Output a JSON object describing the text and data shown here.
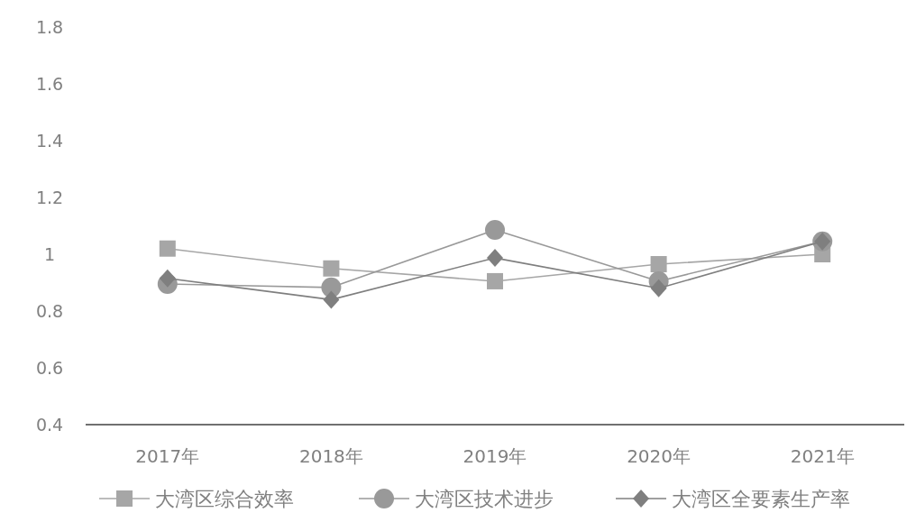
{
  "chart_data": {
    "type": "line",
    "categories": [
      "2017年",
      "2018年",
      "2019年",
      "2020年",
      "2021年"
    ],
    "series": [
      {
        "name": "大湾区综合效率",
        "color": "#a6a6a6",
        "marker": "square",
        "values": [
          1.02,
          0.95,
          0.905,
          0.965,
          1.0
        ]
      },
      {
        "name": "大湾区技术进步",
        "color": "#999999",
        "marker": "circle",
        "values": [
          0.895,
          0.883,
          1.086,
          0.905,
          1.045
        ]
      },
      {
        "name": "大湾区全要素生产率",
        "color": "#7f7f7f",
        "marker": "diamond",
        "values": [
          0.915,
          0.84,
          0.987,
          0.88,
          1.045
        ]
      }
    ],
    "ylim": [
      0.4,
      1.8
    ],
    "yticks": [
      0.4,
      0.6,
      0.8,
      {
        "value": 1,
        "label": "1"
      },
      1.2,
      1.4,
      1.6,
      1.8
    ],
    "grid": false,
    "legend": "bottom"
  }
}
